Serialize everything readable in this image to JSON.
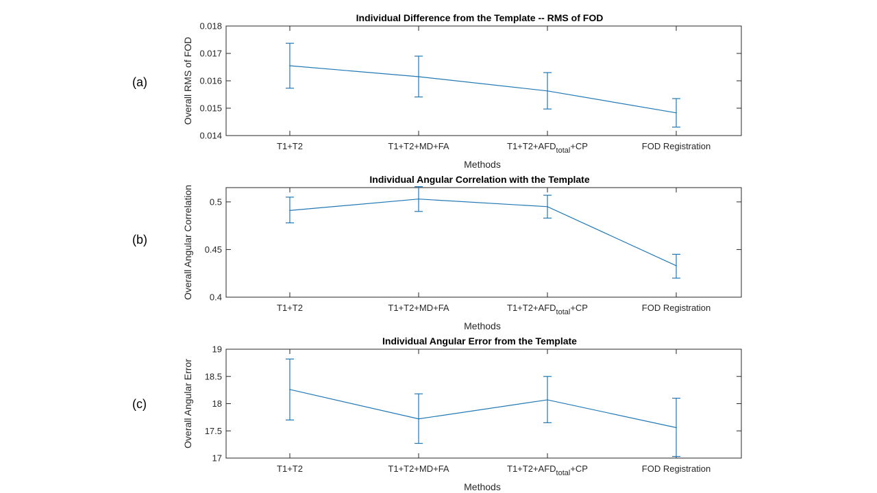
{
  "panel_labels": [
    "(a)",
    "(b)",
    "(c)"
  ],
  "colors": {
    "series": "#1f77b4",
    "axis": "#262626",
    "background": "#ffffff"
  },
  "chart_data": [
    {
      "type": "line",
      "title": "Individual Difference from the Template -- RMS of FOD",
      "xlabel": "Methods",
      "ylabel": "Overall RMS of FOD",
      "categories": [
        "T1+T2",
        "T1+T2+MD+FA",
        "T1+T2+AFD_total+CP",
        "FOD Registration"
      ],
      "values": [
        0.01655,
        0.01615,
        0.01563,
        0.01483
      ],
      "error_low": [
        0.01573,
        0.01541,
        0.01497,
        0.01431
      ],
      "error_high": [
        0.01737,
        0.0169,
        0.0163,
        0.01535
      ],
      "ylim": [
        0.014,
        0.018
      ],
      "yticks": [
        "0.014",
        "0.015",
        "0.016",
        "0.017",
        "0.018"
      ],
      "ytick_values": [
        0.014,
        0.015,
        0.016,
        0.017,
        0.018
      ]
    },
    {
      "type": "line",
      "title": "Individual Angular Correlation with the Template",
      "xlabel": "Methods",
      "ylabel": "Overall Angular Correlation",
      "categories": [
        "T1+T2",
        "T1+T2+MD+FA",
        "T1+T2+AFD_total+CP",
        "FOD Registration"
      ],
      "values": [
        0.491,
        0.503,
        0.495,
        0.433
      ],
      "error_low": [
        0.478,
        0.49,
        0.483,
        0.42
      ],
      "error_high": [
        0.505,
        0.516,
        0.507,
        0.445
      ],
      "ylim": [
        0.4,
        0.515
      ],
      "yticks": [
        "0.4",
        "0.45",
        "0.5"
      ],
      "ytick_values": [
        0.4,
        0.45,
        0.5
      ]
    },
    {
      "type": "line",
      "title": "Individual Angular Error from the Template",
      "xlabel": "Methods",
      "ylabel": "Overall Angular Error",
      "categories": [
        "T1+T2",
        "T1+T2+MD+FA",
        "T1+T2+AFD_total+CP",
        "FOD Registration"
      ],
      "values": [
        18.26,
        17.72,
        18.07,
        17.56
      ],
      "error_low": [
        17.7,
        17.27,
        17.65,
        17.03
      ],
      "error_high": [
        18.82,
        18.18,
        18.5,
        18.1
      ],
      "ylim": [
        17,
        19
      ],
      "yticks": [
        "17",
        "17.5",
        "18",
        "18.5",
        "19"
      ],
      "ytick_values": [
        17,
        17.5,
        18,
        18.5,
        19
      ]
    }
  ]
}
